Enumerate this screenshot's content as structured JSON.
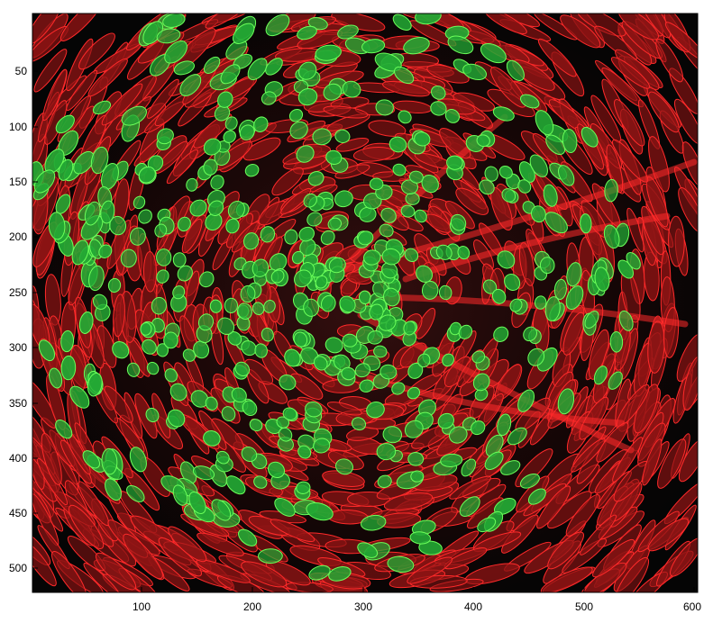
{
  "image": {
    "kind": "segmentation overlay of fluorescence microscopy image",
    "colors": {
      "background": "#050505",
      "cell_red_fill": "#8c1414",
      "cell_red_edge": "#ff2a2a",
      "cell_green_fill": "#23a834",
      "cell_green_edge": "#6cff5a",
      "axes_frame": "#000000"
    }
  },
  "axes": {
    "x_ticks": [
      "100",
      "200",
      "300",
      "400",
      "500",
      "600"
    ],
    "y_ticks": [
      "50",
      "100",
      "150",
      "200",
      "250",
      "300",
      "350",
      "400",
      "450",
      "500"
    ]
  }
}
